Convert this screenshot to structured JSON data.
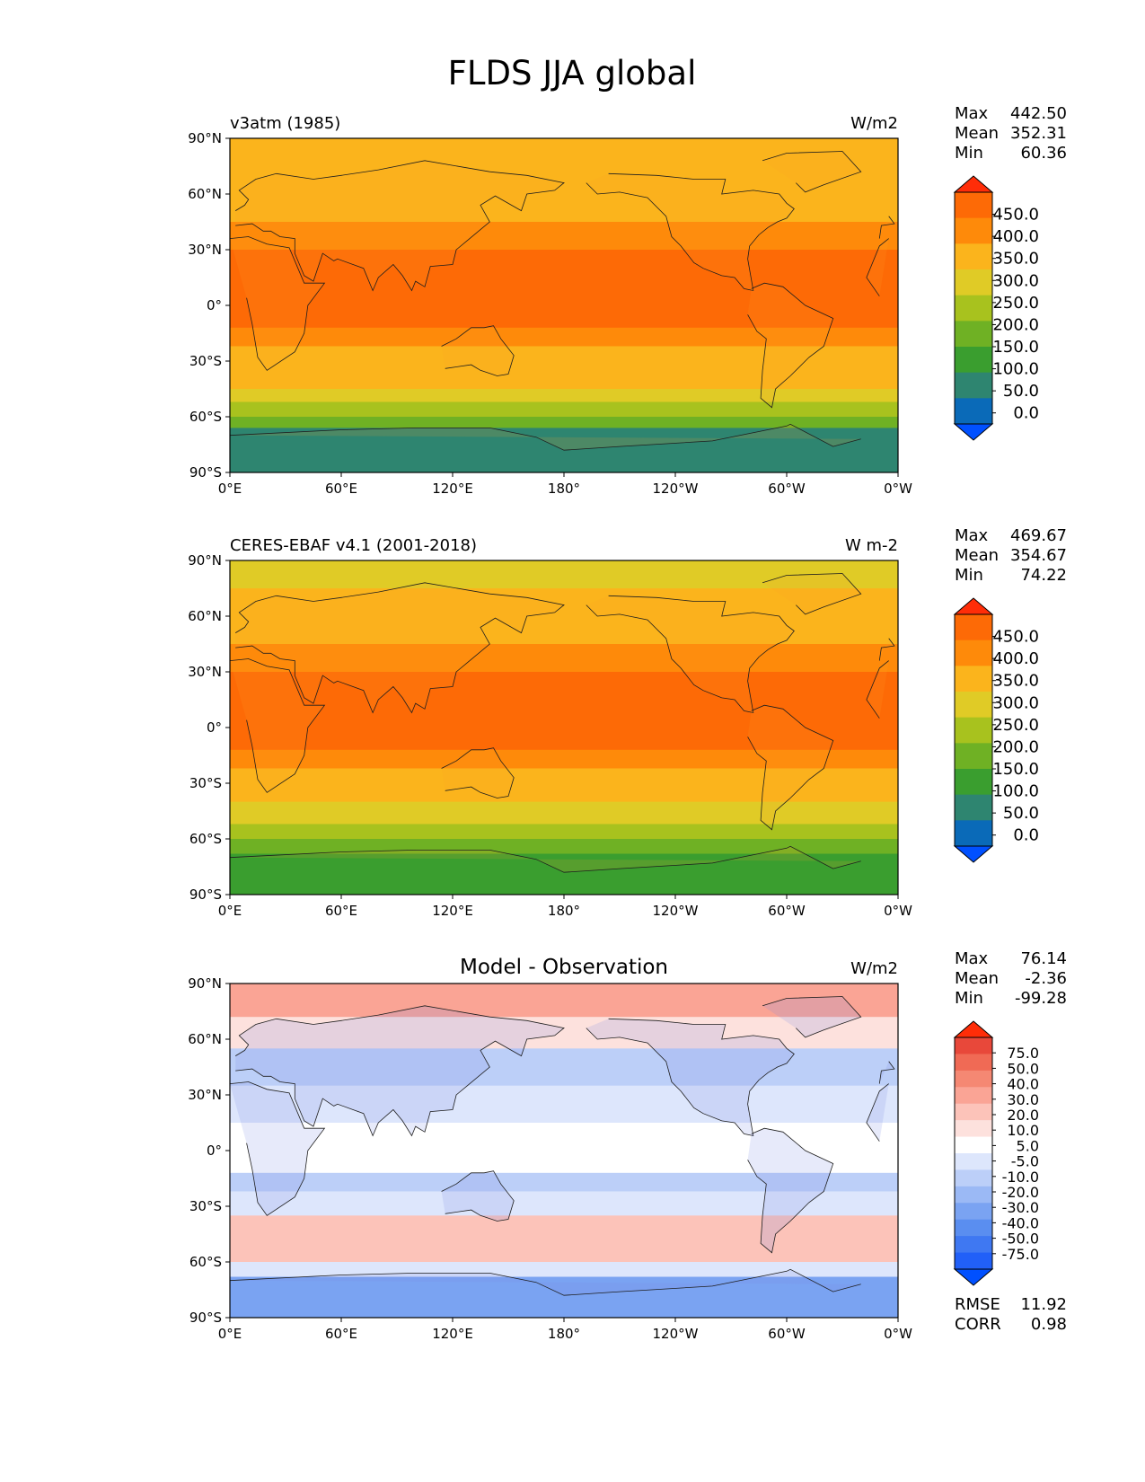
{
  "figure": {
    "title": "FLDS JJA global"
  },
  "colors": {
    "abs_levels": [
      "#0050ff",
      "#0a6ab8",
      "#2e8570",
      "#3a9e2f",
      "#6fb124",
      "#a8c21e",
      "#e0cb26",
      "#fbb41c",
      "#fe8a0a",
      "#fd6a06",
      "#ff2d08"
    ],
    "diff_levels": [
      "#0050ff",
      "#2160f8",
      "#3f78f2",
      "#5a8ef0",
      "#7aa3f2",
      "#9bb9f5",
      "#bccff8",
      "#dde6fc",
      "#ffffff",
      "#fde1dd",
      "#fcc3b9",
      "#faa495",
      "#f58873",
      "#f06a55",
      "#e8483a",
      "#ff2d08"
    ],
    "land": "#1e1e1e"
  },
  "chart_data": [
    {
      "type": "heatmap",
      "title": "v3atm (1985)",
      "units": "W/m2",
      "stats": {
        "max_label": "Max",
        "max": "442.50",
        "mean_label": "Mean",
        "mean": "352.31",
        "min_label": "Min",
        "min": "60.36"
      },
      "x_ticks": [
        "0°E",
        "60°E",
        "120°E",
        "180°",
        "120°W",
        "60°W",
        "0°W"
      ],
      "y_ticks": [
        "90°N",
        "60°N",
        "30°N",
        "0°",
        "30°S",
        "60°S",
        "90°S"
      ],
      "xlim": [
        0,
        360
      ],
      "ylim": [
        -90,
        90
      ],
      "colorbar": {
        "labels": [
          "450.0",
          "400.0",
          "350.0",
          "300.0",
          "250.0",
          "200.0",
          "150.0",
          "100.0",
          "50.0",
          "0.0"
        ],
        "extend": "both"
      },
      "lat_bands": [
        {
          "from": 90,
          "to": 75,
          "level": 7
        },
        {
          "from": 75,
          "to": 45,
          "level": 7
        },
        {
          "from": 45,
          "to": 30,
          "level": 8
        },
        {
          "from": 30,
          "to": -12,
          "level": 9
        },
        {
          "from": -12,
          "to": -22,
          "level": 8
        },
        {
          "from": -22,
          "to": -45,
          "level": 7
        },
        {
          "from": -45,
          "to": -52,
          "level": 6
        },
        {
          "from": -52,
          "to": -60,
          "level": 5
        },
        {
          "from": -60,
          "to": -66,
          "level": 4
        },
        {
          "from": -66,
          "to": -90,
          "level": 2
        }
      ]
    },
    {
      "type": "heatmap",
      "title": "CERES-EBAF v4.1 (2001-2018)",
      "units": "W m-2",
      "stats": {
        "max_label": "Max",
        "max": "469.67",
        "mean_label": "Mean",
        "mean": "354.67",
        "min_label": "Min",
        "min": "74.22"
      },
      "x_ticks": [
        "0°E",
        "60°E",
        "120°E",
        "180°",
        "120°W",
        "60°W",
        "0°W"
      ],
      "y_ticks": [
        "90°N",
        "60°N",
        "30°N",
        "0°",
        "30°S",
        "60°S",
        "90°S"
      ],
      "xlim": [
        0,
        360
      ],
      "ylim": [
        -90,
        90
      ],
      "colorbar": {
        "labels": [
          "450.0",
          "400.0",
          "350.0",
          "300.0",
          "250.0",
          "200.0",
          "150.0",
          "100.0",
          "50.0",
          "0.0"
        ],
        "extend": "both"
      },
      "lat_bands": [
        {
          "from": 90,
          "to": 75,
          "level": 6
        },
        {
          "from": 75,
          "to": 45,
          "level": 7
        },
        {
          "from": 45,
          "to": 30,
          "level": 8
        },
        {
          "from": 30,
          "to": -12,
          "level": 9
        },
        {
          "from": -12,
          "to": -22,
          "level": 8
        },
        {
          "from": -22,
          "to": -40,
          "level": 7
        },
        {
          "from": -40,
          "to": -52,
          "level": 6
        },
        {
          "from": -52,
          "to": -60,
          "level": 5
        },
        {
          "from": -60,
          "to": -68,
          "level": 4
        },
        {
          "from": -68,
          "to": -90,
          "level": 3
        }
      ]
    },
    {
      "type": "heatmap",
      "title": "Model - Observation",
      "units": "W/m2",
      "stats": {
        "max_label": "Max",
        "max": "76.14",
        "mean_label": "Mean",
        "mean": "-2.36",
        "min_label": "Min",
        "min": "-99.28"
      },
      "extra_stats": {
        "rmse_label": "RMSE",
        "rmse": "11.92",
        "corr_label": "CORR",
        "corr": "0.98"
      },
      "x_ticks": [
        "0°E",
        "60°E",
        "120°E",
        "180°",
        "120°W",
        "60°W",
        "0°W"
      ],
      "y_ticks": [
        "90°N",
        "60°N",
        "30°N",
        "0°",
        "30°S",
        "60°S",
        "90°S"
      ],
      "xlim": [
        0,
        360
      ],
      "ylim": [
        -90,
        90
      ],
      "colorbar": {
        "labels": [
          "75.0",
          "50.0",
          "40.0",
          "30.0",
          "20.0",
          "10.0",
          "5.0",
          "-5.0",
          "-10.0",
          "-20.0",
          "-30.0",
          "-40.0",
          "-50.0",
          "-75.0"
        ],
        "extend": "both"
      },
      "lat_bands": [
        {
          "from": 90,
          "to": 72,
          "level": 11
        },
        {
          "from": 72,
          "to": 55,
          "level": 9
        },
        {
          "from": 55,
          "to": 35,
          "level": 6
        },
        {
          "from": 35,
          "to": 15,
          "level": 7
        },
        {
          "from": 15,
          "to": -12,
          "level": 8
        },
        {
          "from": -12,
          "to": -22,
          "level": 6
        },
        {
          "from": -22,
          "to": -35,
          "level": 7
        },
        {
          "from": -35,
          "to": -60,
          "level": 10
        },
        {
          "from": -60,
          "to": -68,
          "level": 7
        },
        {
          "from": -68,
          "to": -90,
          "level": 4
        }
      ]
    }
  ]
}
